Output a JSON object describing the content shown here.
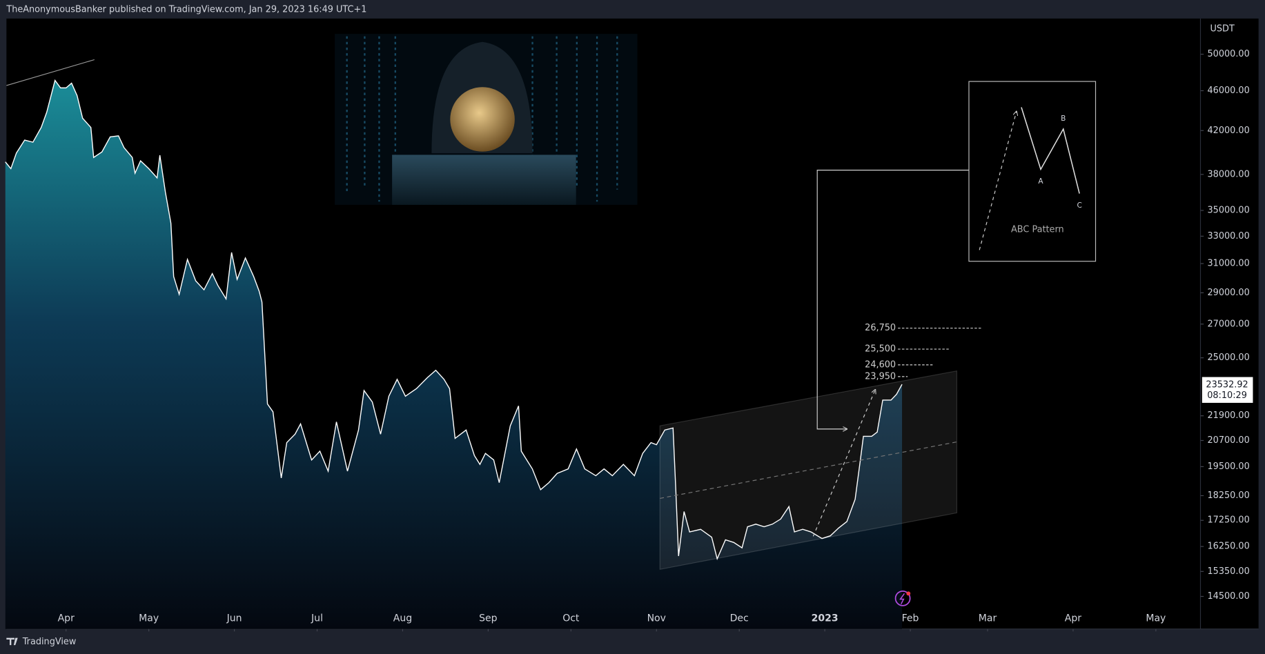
{
  "header": "TheAnonymousBanker published on TradingView.com, Jan 29, 2023 16:49 UTC+1",
  "footer": "TradingView",
  "chart_data": {
    "type": "area",
    "currency": "USDT",
    "log_scale": true,
    "color": "#ffffff",
    "x": [
      -22,
      -20,
      -18,
      -15,
      -12,
      -9,
      -7,
      -4,
      -2,
      0,
      2,
      4,
      6,
      9,
      10,
      13,
      16,
      19,
      21,
      24,
      25,
      27,
      30,
      33,
      34,
      36,
      38,
      39,
      41,
      44,
      47,
      50,
      53,
      55,
      58,
      60,
      62,
      65,
      68,
      70,
      71,
      73,
      75,
      78,
      80,
      83,
      85,
      89,
      92,
      95,
      98,
      102,
      106,
      108,
      111,
      114,
      117,
      120,
      123,
      127,
      131,
      134,
      137,
      139,
      141,
      145,
      148,
      150,
      152,
      155,
      157,
      161,
      164,
      165,
      169,
      172,
      175,
      178,
      182,
      185,
      188,
      192,
      195,
      198,
      202,
      206,
      209,
      212,
      214,
      217,
      220,
      221,
      222,
      224,
      226,
      230,
      234,
      236,
      239,
      242,
      245,
      247,
      250,
      253,
      256,
      259,
      262,
      264,
      267,
      270,
      274,
      277,
      280,
      283,
      286,
      288,
      289,
      292,
      294,
      296,
      299,
      301,
      303
    ],
    "values": [
      39100,
      38500,
      39900,
      41100,
      40900,
      42300,
      43800,
      47100,
      46300,
      46300,
      46800,
      45500,
      43200,
      42300,
      39500,
      40000,
      41400,
      41500,
      40400,
      39500,
      38100,
      39200,
      38500,
      37700,
      39700,
      36500,
      34000,
      30100,
      28900,
      31300,
      29800,
      29200,
      30300,
      29500,
      28600,
      31800,
      29900,
      31400,
      30100,
      29100,
      28400,
      22500,
      22100,
      19000,
      20600,
      21000,
      21500,
      19800,
      20200,
      19300,
      21600,
      19300,
      21200,
      23200,
      22600,
      21000,
      22900,
      23800,
      22900,
      23300,
      23900,
      24300,
      23800,
      23300,
      20800,
      21200,
      20000,
      19600,
      20100,
      19800,
      18800,
      21400,
      22400,
      20200,
      19400,
      18500,
      18800,
      19200,
      19400,
      20300,
      19400,
      19100,
      19400,
      19100,
      19600,
      19100,
      20100,
      20600,
      20500,
      21200,
      21300,
      18500,
      15900,
      17600,
      16800,
      16900,
      16600,
      15800,
      16500,
      16400,
      16200,
      17000,
      17100,
      17000,
      17100,
      17300,
      17800,
      16800,
      16900,
      16800,
      16550,
      16650,
      16950,
      17200,
      18100,
      19900,
      20900,
      20900,
      21100,
      22700,
      22700,
      23000,
      23532.92
    ],
    "xlim": [
      -21.6,
      411.16
    ],
    "ylim": [
      13460,
      54240
    ],
    "xticks": [
      {
        "value": 0,
        "label": "Apr"
      },
      {
        "value": 30,
        "label": "May"
      },
      {
        "value": 61,
        "label": "Jun"
      },
      {
        "value": 91,
        "label": "Jul"
      },
      {
        "value": 122,
        "label": "Aug"
      },
      {
        "value": 153,
        "label": "Sep"
      },
      {
        "value": 183,
        "label": "Oct"
      },
      {
        "value": 214,
        "label": "Nov"
      },
      {
        "value": 244,
        "label": "Dec"
      },
      {
        "value": 275,
        "label": "2023"
      },
      {
        "value": 306,
        "label": "Feb"
      },
      {
        "value": 334,
        "label": "Mar"
      },
      {
        "value": 365,
        "label": "Apr"
      },
      {
        "value": 395,
        "label": "May"
      }
    ],
    "yticks": [
      {
        "value": 50000,
        "label": "50000.00"
      },
      {
        "value": 46000,
        "label": "46000.00"
      },
      {
        "value": 42000,
        "label": "42000.00"
      },
      {
        "value": 38000,
        "label": "38000.00"
      },
      {
        "value": 35000,
        "label": "35000.00"
      },
      {
        "value": 33000,
        "label": "33000.00"
      },
      {
        "value": 31000,
        "label": "31000.00"
      },
      {
        "value": 29000,
        "label": "29000.00"
      },
      {
        "value": 27000,
        "label": "27000.00"
      },
      {
        "value": 25000,
        "label": "25000.00"
      },
      {
        "value": 21900,
        "label": "21900.00"
      },
      {
        "value": 20700,
        "label": "20700.00"
      },
      {
        "value": 19500,
        "label": "19500.00"
      },
      {
        "value": 18250,
        "label": "18250.00"
      },
      {
        "value": 17250,
        "label": "17250.00"
      },
      {
        "value": 16250,
        "label": "16250.00"
      },
      {
        "value": 15350,
        "label": "15350.00"
      },
      {
        "value": 14500,
        "label": "14500.00"
      }
    ],
    "last_price": 23532.92,
    "countdown": "08:10:29",
    "levels": [
      {
        "value": 26750,
        "label": "26,750"
      },
      {
        "value": 25500,
        "label": "25,500"
      },
      {
        "value": 24600,
        "label": "24,600"
      },
      {
        "value": 23950,
        "label": "23,950"
      }
    ],
    "pattern": {
      "title": "ABC Pattern",
      "a": "A",
      "b": "B",
      "c": "C"
    }
  }
}
